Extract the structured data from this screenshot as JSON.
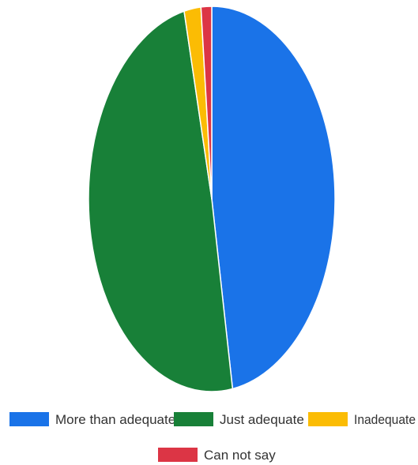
{
  "chart_data": {
    "type": "pie",
    "title": "",
    "series": [
      {
        "name": "More than adequate",
        "value": 47.3,
        "color": "#1a73e8"
      },
      {
        "name": "Just adequate",
        "value": 49.1,
        "color": "#188038"
      },
      {
        "name": "Inadequate",
        "value": 2.2,
        "color": "#fbbc04"
      },
      {
        "name": "Can not say",
        "value": 1.4,
        "color": "#dc3545"
      }
    ],
    "legend_position": "bottom"
  }
}
